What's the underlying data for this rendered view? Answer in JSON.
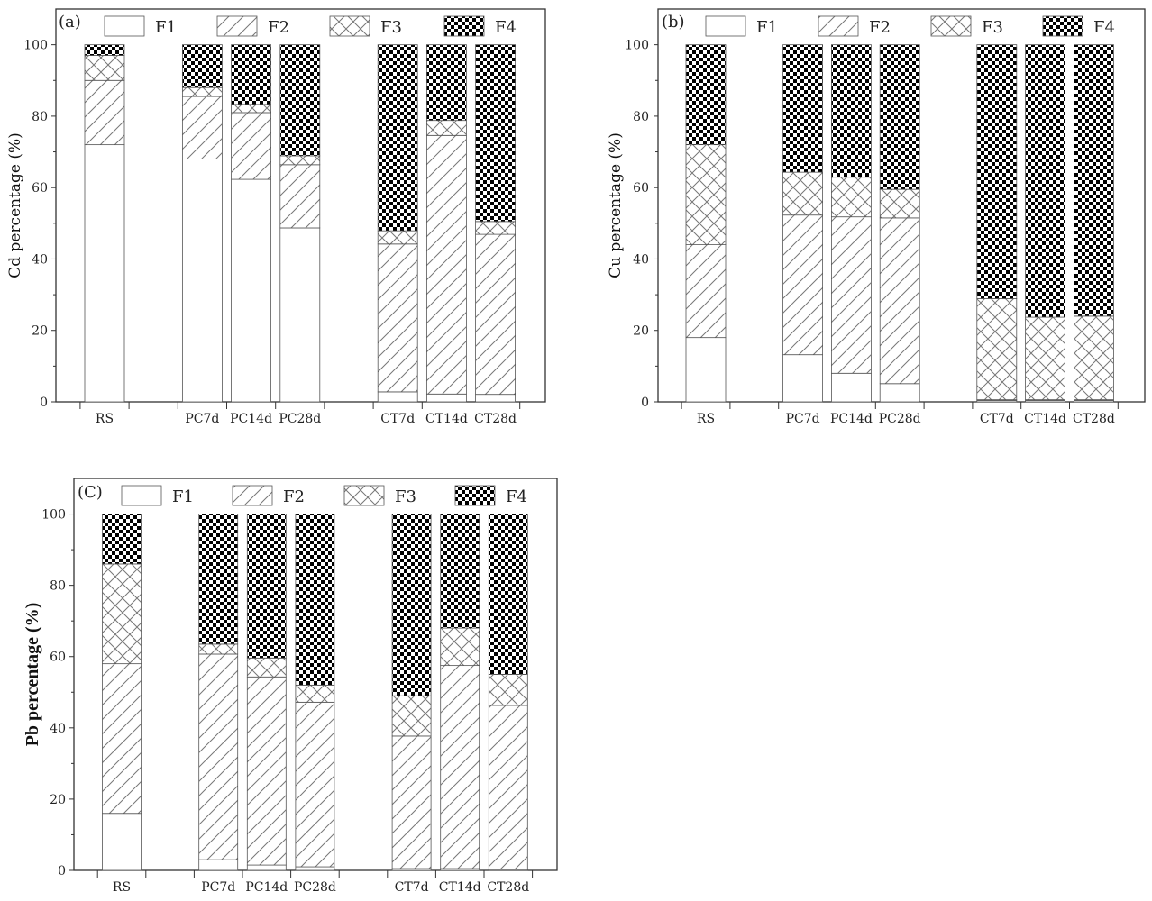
{
  "colors": {
    "frame": "#333333",
    "bar_edge": "#555555",
    "hatch": "#777777",
    "f4_dark": "#000000",
    "background": "#ffffff"
  },
  "legend": [
    "F1",
    "F2",
    "F3",
    "F4"
  ],
  "chart_data": [
    {
      "type": "bar",
      "stacked": true,
      "panel_label": "(a)",
      "ylabel": "Cd percentage (%)",
      "ylim": [
        0,
        110
      ],
      "yticks": [
        0,
        20,
        40,
        60,
        80,
        100
      ],
      "categories": [
        "RS",
        "PC7d",
        "PC14d",
        "PC28d",
        "CT7d",
        "CT14d",
        "CT28d"
      ],
      "slots": [
        0,
        2,
        3,
        4,
        6,
        7,
        8
      ],
      "series": [
        {
          "name": "F1",
          "values": [
            72,
            68,
            62.3,
            48.7,
            2.8,
            2.2,
            2.1
          ]
        },
        {
          "name": "F2",
          "values": [
            18,
            17.5,
            18.7,
            17.7,
            41.4,
            72.4,
            44.8
          ]
        },
        {
          "name": "F3",
          "values": [
            7,
            2.5,
            2.3,
            2.5,
            3.7,
            4.2,
            3.6
          ]
        },
        {
          "name": "F4",
          "values": [
            3,
            12,
            16.7,
            31.1,
            52.1,
            21.2,
            49.5
          ]
        }
      ]
    },
    {
      "type": "bar",
      "stacked": true,
      "panel_label": "(b)",
      "ylabel": "Cu percentage (%)",
      "ylim": [
        0,
        110
      ],
      "yticks": [
        0,
        20,
        40,
        60,
        80,
        100
      ],
      "categories": [
        "RS",
        "PC7d",
        "PC14d",
        "PC28d",
        "CT7d",
        "CT14d",
        "CT28d"
      ],
      "slots": [
        0,
        2,
        3,
        4,
        6,
        7,
        8
      ],
      "series": [
        {
          "name": "F1",
          "values": [
            18,
            13.2,
            8,
            5.1,
            0.4,
            0.4,
            0.4
          ]
        },
        {
          "name": "F2",
          "values": [
            26,
            39.1,
            43.8,
            46.4,
            0.2,
            0.2,
            0.2
          ]
        },
        {
          "name": "F3",
          "values": [
            28,
            12,
            11.1,
            8,
            28.3,
            23.1,
            23.4
          ]
        },
        {
          "name": "F4",
          "values": [
            28,
            35.7,
            37.1,
            40.5,
            71.1,
            76.3,
            76
          ]
        }
      ]
    },
    {
      "type": "bar",
      "stacked": true,
      "panel_label": "(C)",
      "ylabel": "Pb percentage (%)",
      "ylim": [
        0,
        110
      ],
      "yticks": [
        0,
        20,
        40,
        60,
        80,
        100
      ],
      "categories": [
        "RS",
        "PC7d",
        "PC14d",
        "PC28d",
        "CT7d",
        "CT14d",
        "CT28d"
      ],
      "slots": [
        0,
        2,
        3,
        4,
        6,
        7,
        8
      ],
      "series": [
        {
          "name": "F1",
          "values": [
            16,
            3,
            1.5,
            1,
            0.5,
            0.5,
            0.3
          ]
        },
        {
          "name": "F2",
          "values": [
            42,
            57.7,
            52.8,
            46.2,
            37.2,
            57,
            46
          ]
        },
        {
          "name": "F3",
          "values": [
            28,
            2.8,
            5.3,
            4.8,
            11.3,
            10.5,
            8.7
          ]
        },
        {
          "name": "F4",
          "values": [
            14,
            36.5,
            40.4,
            48,
            51,
            32,
            45
          ]
        }
      ]
    }
  ]
}
